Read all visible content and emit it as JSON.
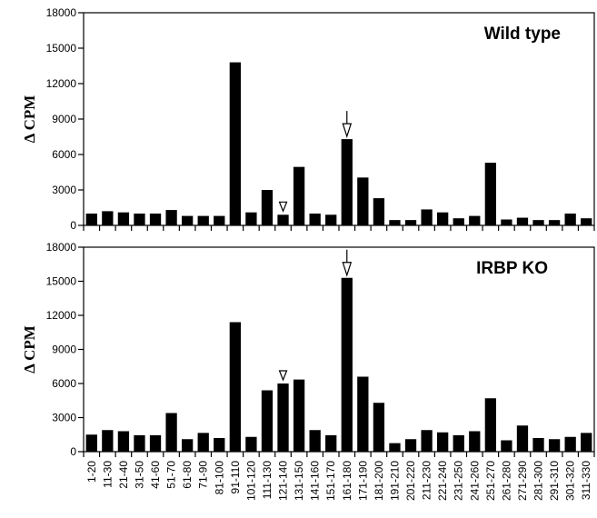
{
  "chart_data": [
    {
      "type": "bar",
      "title": "Wild type",
      "ylabel": "Δ CPM",
      "ylim": [
        0,
        18000
      ],
      "yticks": [
        0,
        3000,
        6000,
        9000,
        12000,
        15000,
        18000
      ],
      "categories": [
        "1-20",
        "11-30",
        "21-40",
        "31-50",
        "41-60",
        "51-70",
        "61-80",
        "71-90",
        "81-100",
        "91-110",
        "101-120",
        "111-130",
        "121-140",
        "131-150",
        "141-160",
        "151-170",
        "161-180",
        "171-190",
        "181-200",
        "191-210",
        "201-220",
        "211-230",
        "221-240",
        "231-250",
        "241-260",
        "251-270",
        "261-280",
        "271-290",
        "281-300",
        "291-310",
        "301-320",
        "311-330"
      ],
      "values": [
        1000,
        1200,
        1100,
        1000,
        1000,
        1300,
        800,
        800,
        800,
        13800,
        1100,
        3000,
        900,
        4950,
        1000,
        900,
        7300,
        4050,
        2300,
        450,
        450,
        1350,
        1100,
        600,
        800,
        5300,
        500,
        650,
        450,
        450,
        1000,
        600
      ],
      "markers": [
        {
          "category": "121-140",
          "kind": "open-triangle-arrowhead"
        },
        {
          "category": "161-180",
          "kind": "arrow"
        }
      ]
    },
    {
      "type": "bar",
      "title": "IRBP KO",
      "ylabel": "Δ CPM",
      "ylim": [
        0,
        18000
      ],
      "yticks": [
        0,
        3000,
        6000,
        9000,
        12000,
        15000,
        18000
      ],
      "categories": [
        "1-20",
        "11-30",
        "21-40",
        "31-50",
        "41-60",
        "51-70",
        "61-80",
        "71-90",
        "81-100",
        "91-110",
        "101-120",
        "111-130",
        "121-140",
        "131-150",
        "141-160",
        "151-170",
        "161-180",
        "171-190",
        "181-200",
        "191-210",
        "201-220",
        "211-230",
        "221-240",
        "231-250",
        "241-260",
        "251-270",
        "261-280",
        "271-290",
        "281-300",
        "291-310",
        "301-320",
        "311-330"
      ],
      "values": [
        1500,
        1900,
        1800,
        1450,
        1450,
        3400,
        1100,
        1650,
        1200,
        11400,
        1300,
        5400,
        6000,
        6350,
        1900,
        1450,
        15300,
        6600,
        4300,
        750,
        1100,
        1900,
        1700,
        1450,
        1800,
        4700,
        1000,
        2300,
        1200,
        1100,
        1300,
        1650
      ],
      "markers": [
        {
          "category": "121-140",
          "kind": "open-triangle-arrowhead"
        },
        {
          "category": "161-180",
          "kind": "arrow"
        }
      ]
    }
  ]
}
